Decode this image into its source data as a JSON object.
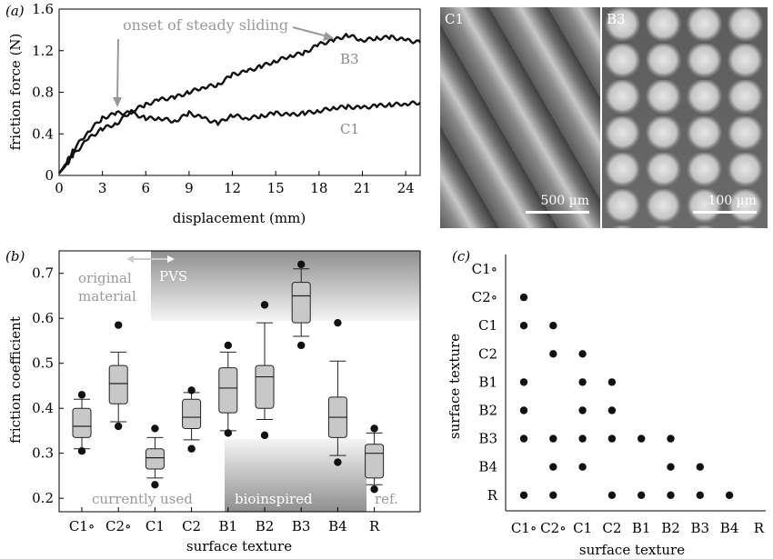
{
  "chart_data": [
    {
      "panel": "(a)",
      "type": "line",
      "xlabel": "displacement (mm)",
      "ylabel": "friction force (N)",
      "xticks": [
        0,
        3,
        6,
        9,
        12,
        15,
        18,
        21,
        24
      ],
      "yticks": [
        0,
        0.4,
        0.8,
        1.2,
        1.6
      ],
      "xlim": [
        0,
        25
      ],
      "ylim": [
        0,
        1.6
      ],
      "series": [
        {
          "name": "B3",
          "x": [
            0,
            0.5,
            1,
            2,
            3,
            4,
            5,
            6,
            7,
            8,
            9,
            10,
            11,
            12,
            13,
            14,
            15,
            16,
            17,
            18,
            19,
            20,
            21,
            22,
            23,
            24,
            25
          ],
          "y": [
            0.02,
            0.1,
            0.2,
            0.35,
            0.45,
            0.5,
            0.62,
            0.68,
            0.73,
            0.75,
            0.8,
            0.85,
            0.87,
            0.97,
            1.0,
            1.05,
            1.1,
            1.15,
            1.18,
            1.26,
            1.3,
            1.35,
            1.3,
            1.32,
            1.33,
            1.3,
            1.28
          ]
        },
        {
          "name": "C1",
          "x": [
            0,
            0.5,
            1,
            2,
            3,
            4,
            5,
            6,
            7,
            8,
            9,
            10,
            11,
            12,
            13,
            14,
            15,
            16,
            17,
            18,
            19,
            20,
            21,
            22,
            23,
            24,
            25
          ],
          "y": [
            0.02,
            0.12,
            0.25,
            0.42,
            0.55,
            0.6,
            0.6,
            0.55,
            0.55,
            0.52,
            0.6,
            0.55,
            0.5,
            0.58,
            0.55,
            0.57,
            0.6,
            0.58,
            0.6,
            0.62,
            0.65,
            0.66,
            0.65,
            0.67,
            0.68,
            0.69,
            0.7
          ]
        }
      ],
      "annotations": [
        "onset of steady sliding"
      ]
    },
    {
      "panel": "(b)",
      "type": "box",
      "xlabel": "surface texture",
      "ylabel": "friction coefficient",
      "categories": [
        "C1∘",
        "C2∘",
        "C1",
        "C2",
        "B1",
        "B2",
        "B3",
        "B4",
        "R"
      ],
      "yticks": [
        0.2,
        0.3,
        0.4,
        0.5,
        0.6,
        0.7
      ],
      "ylim": [
        0.17,
        0.75
      ],
      "boxes": [
        {
          "min": 0.31,
          "q1": 0.335,
          "median": 0.36,
          "q3": 0.4,
          "max": 0.42,
          "outliers": [
            0.305,
            0.43
          ]
        },
        {
          "min": 0.37,
          "q1": 0.41,
          "median": 0.455,
          "q3": 0.495,
          "max": 0.525,
          "outliers": [
            0.36,
            0.585
          ]
        },
        {
          "min": 0.245,
          "q1": 0.265,
          "median": 0.29,
          "q3": 0.31,
          "max": 0.335,
          "outliers": [
            0.23,
            0.355
          ]
        },
        {
          "min": 0.33,
          "q1": 0.355,
          "median": 0.38,
          "q3": 0.42,
          "max": 0.435,
          "outliers": [
            0.31,
            0.44
          ]
        },
        {
          "min": 0.35,
          "q1": 0.39,
          "median": 0.445,
          "q3": 0.49,
          "max": 0.525,
          "outliers": [
            0.345,
            0.54
          ]
        },
        {
          "min": 0.375,
          "q1": 0.4,
          "median": 0.47,
          "q3": 0.495,
          "max": 0.59,
          "outliers": [
            0.34,
            0.63
          ]
        },
        {
          "min": 0.56,
          "q1": 0.59,
          "median": 0.65,
          "q3": 0.68,
          "max": 0.71,
          "outliers": [
            0.54,
            0.72
          ]
        },
        {
          "min": 0.295,
          "q1": 0.335,
          "median": 0.38,
          "q3": 0.425,
          "max": 0.505,
          "outliers": [
            0.28,
            0.59
          ]
        },
        {
          "min": 0.23,
          "q1": 0.245,
          "median": 0.3,
          "q3": 0.32,
          "max": 0.345,
          "outliers": [
            0.22,
            0.355
          ]
        }
      ],
      "annotations": [
        "original",
        "material",
        "PVS",
        "bioinspired",
        "currently used",
        "ref."
      ]
    },
    {
      "panel": "(c)",
      "type": "scatter",
      "xlabel": "surface texture",
      "ylabel": "surface texture",
      "x_categories": [
        "C1∘",
        "C2∘",
        "C1",
        "C2",
        "B1",
        "B2",
        "B3",
        "B4",
        "R"
      ],
      "y_categories": [
        "C1∘",
        "C2∘",
        "C1",
        "C2",
        "B1",
        "B2",
        "B3",
        "B4",
        "R"
      ],
      "points": [
        [
          "C1∘",
          "C2∘"
        ],
        [
          "C1∘",
          "C1"
        ],
        [
          "C2∘",
          "C1"
        ],
        [
          "C2∘",
          "C2"
        ],
        [
          "C1",
          "C2"
        ],
        [
          "C1∘",
          "B1"
        ],
        [
          "C1",
          "B1"
        ],
        [
          "C2",
          "B1"
        ],
        [
          "C1∘",
          "B2"
        ],
        [
          "C1",
          "B2"
        ],
        [
          "C2",
          "B2"
        ],
        [
          "C1∘",
          "B3"
        ],
        [
          "C2∘",
          "B3"
        ],
        [
          "C1",
          "B3"
        ],
        [
          "C2",
          "B3"
        ],
        [
          "B1",
          "B3"
        ],
        [
          "B2",
          "B3"
        ],
        [
          "C2∘",
          "B4"
        ],
        [
          "C1",
          "B4"
        ],
        [
          "B2",
          "B4"
        ],
        [
          "B3",
          "B4"
        ],
        [
          "C1∘",
          "R"
        ],
        [
          "C2∘",
          "R"
        ],
        [
          "C2",
          "R"
        ],
        [
          "B1",
          "R"
        ],
        [
          "B2",
          "R"
        ],
        [
          "B3",
          "R"
        ],
        [
          "B4",
          "R"
        ]
      ]
    }
  ],
  "micrographs": [
    {
      "label": "C1",
      "scale": "500 µm"
    },
    {
      "label": "B3",
      "scale": "100 µm"
    }
  ]
}
